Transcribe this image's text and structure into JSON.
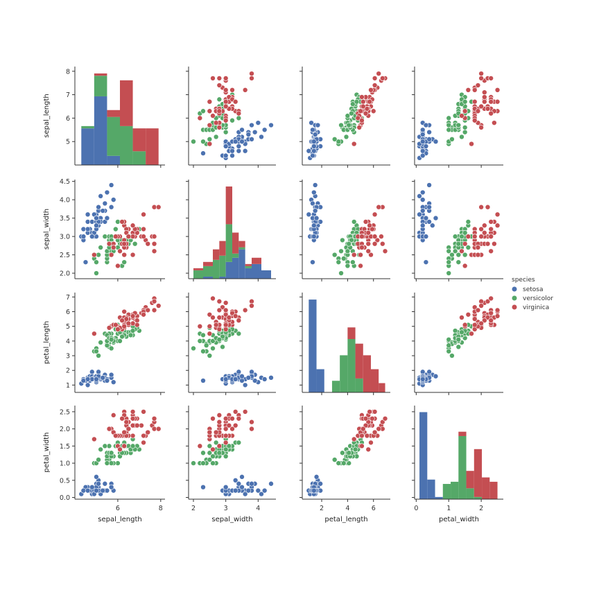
{
  "chart_data": {
    "type": "scatter",
    "variables": [
      "sepal_length",
      "sepal_width",
      "petal_length",
      "petal_width"
    ],
    "ranges": {
      "sepal_length": [
        4.0,
        8.2
      ],
      "sepal_width": [
        1.85,
        4.55
      ],
      "petal_length": [
        0.5,
        7.3
      ],
      "petal_width": [
        -0.05,
        2.68
      ]
    },
    "ticks": {
      "sepal_length": {
        "row": [
          5,
          6,
          7,
          8
        ],
        "col": [
          6,
          8
        ]
      },
      "sepal_width": {
        "row": [
          2.0,
          2.5,
          3.0,
          3.5,
          4.0,
          4.5
        ],
        "col": [
          2,
          3,
          4
        ]
      },
      "petal_length": {
        "row": [
          1,
          2,
          3,
          4,
          5,
          6,
          7
        ],
        "col": [
          2,
          4,
          6
        ]
      },
      "petal_width": {
        "row": [
          0.0,
          0.5,
          1.0,
          1.5,
          2.0,
          2.5
        ],
        "col": [
          0,
          1,
          2
        ]
      }
    },
    "tick_labels": {
      "sepal_length": {
        "row": [
          "5",
          "6",
          "7",
          "8"
        ],
        "col": [
          "6",
          "8"
        ]
      },
      "sepal_width": {
        "row": [
          "2.0",
          "2.5",
          "3.0",
          "3.5",
          "4.0",
          "4.5"
        ],
        "col": [
          "2",
          "3",
          "4"
        ]
      },
      "petal_length": {
        "row": [
          "1",
          "2",
          "3",
          "4",
          "5",
          "6",
          "7"
        ],
        "col": [
          "2",
          "4",
          "6"
        ]
      },
      "petal_width": {
        "row": [
          "0.0",
          "0.5",
          "1.0",
          "1.5",
          "2.0",
          "2.5"
        ],
        "col": [
          "0",
          "1",
          "2"
        ]
      }
    },
    "legend": {
      "title": "species",
      "placement": "right-center"
    },
    "series": [
      {
        "name": "setosa",
        "color": "#4c72b0",
        "points": [
          [
            5.1,
            3.5,
            1.4,
            0.2
          ],
          [
            4.9,
            3.0,
            1.4,
            0.2
          ],
          [
            4.7,
            3.2,
            1.3,
            0.2
          ],
          [
            4.6,
            3.1,
            1.5,
            0.2
          ],
          [
            5.0,
            3.6,
            1.4,
            0.2
          ],
          [
            5.4,
            3.9,
            1.7,
            0.4
          ],
          [
            4.6,
            3.4,
            1.4,
            0.3
          ],
          [
            5.0,
            3.4,
            1.5,
            0.2
          ],
          [
            4.4,
            2.9,
            1.4,
            0.2
          ],
          [
            4.9,
            3.1,
            1.5,
            0.1
          ],
          [
            5.4,
            3.7,
            1.5,
            0.2
          ],
          [
            4.8,
            3.4,
            1.6,
            0.2
          ],
          [
            4.8,
            3.0,
            1.4,
            0.1
          ],
          [
            4.3,
            3.0,
            1.1,
            0.1
          ],
          [
            5.8,
            4.0,
            1.2,
            0.2
          ],
          [
            5.7,
            4.4,
            1.5,
            0.4
          ],
          [
            5.4,
            3.9,
            1.3,
            0.4
          ],
          [
            5.1,
            3.5,
            1.4,
            0.3
          ],
          [
            5.7,
            3.8,
            1.7,
            0.3
          ],
          [
            5.1,
            3.8,
            1.5,
            0.3
          ],
          [
            5.4,
            3.4,
            1.7,
            0.2
          ],
          [
            5.1,
            3.7,
            1.5,
            0.4
          ],
          [
            4.6,
            3.6,
            1.0,
            0.2
          ],
          [
            5.1,
            3.3,
            1.7,
            0.5
          ],
          [
            4.8,
            3.4,
            1.9,
            0.2
          ],
          [
            5.0,
            3.0,
            1.6,
            0.2
          ],
          [
            5.0,
            3.4,
            1.6,
            0.4
          ],
          [
            5.2,
            3.5,
            1.5,
            0.2
          ],
          [
            5.2,
            3.4,
            1.4,
            0.2
          ],
          [
            4.7,
            3.2,
            1.6,
            0.2
          ],
          [
            4.8,
            3.1,
            1.6,
            0.2
          ],
          [
            5.4,
            3.4,
            1.5,
            0.4
          ],
          [
            5.2,
            4.1,
            1.5,
            0.1
          ],
          [
            5.5,
            4.2,
            1.4,
            0.2
          ],
          [
            4.9,
            3.1,
            1.5,
            0.2
          ],
          [
            5.0,
            3.2,
            1.2,
            0.2
          ],
          [
            5.5,
            3.5,
            1.3,
            0.2
          ],
          [
            4.9,
            3.6,
            1.4,
            0.1
          ],
          [
            4.4,
            3.0,
            1.3,
            0.2
          ],
          [
            5.1,
            3.4,
            1.5,
            0.2
          ],
          [
            5.0,
            3.5,
            1.3,
            0.3
          ],
          [
            4.5,
            2.3,
            1.3,
            0.3
          ],
          [
            4.4,
            3.2,
            1.3,
            0.2
          ],
          [
            5.0,
            3.5,
            1.6,
            0.6
          ],
          [
            5.1,
            3.8,
            1.9,
            0.4
          ],
          [
            4.8,
            3.0,
            1.4,
            0.3
          ],
          [
            5.1,
            3.8,
            1.6,
            0.2
          ],
          [
            4.6,
            3.2,
            1.4,
            0.2
          ],
          [
            5.3,
            3.7,
            1.5,
            0.2
          ],
          [
            5.0,
            3.3,
            1.4,
            0.2
          ]
        ]
      },
      {
        "name": "versicolor",
        "color": "#55a868",
        "points": [
          [
            7.0,
            3.2,
            4.7,
            1.4
          ],
          [
            6.4,
            3.2,
            4.5,
            1.5
          ],
          [
            6.9,
            3.1,
            4.9,
            1.5
          ],
          [
            5.5,
            2.3,
            4.0,
            1.3
          ],
          [
            6.5,
            2.8,
            4.6,
            1.5
          ],
          [
            5.7,
            2.8,
            4.5,
            1.3
          ],
          [
            6.3,
            3.3,
            4.7,
            1.6
          ],
          [
            4.9,
            2.4,
            3.3,
            1.0
          ],
          [
            6.6,
            2.9,
            4.6,
            1.3
          ],
          [
            5.2,
            2.7,
            3.9,
            1.4
          ],
          [
            5.0,
            2.0,
            3.5,
            1.0
          ],
          [
            5.9,
            3.0,
            4.2,
            1.5
          ],
          [
            6.0,
            2.2,
            4.0,
            1.0
          ],
          [
            6.1,
            2.9,
            4.7,
            1.4
          ],
          [
            5.6,
            2.9,
            3.6,
            1.3
          ],
          [
            6.7,
            3.1,
            4.4,
            1.4
          ],
          [
            5.6,
            3.0,
            4.5,
            1.5
          ],
          [
            5.8,
            2.7,
            4.1,
            1.0
          ],
          [
            6.2,
            2.2,
            4.5,
            1.5
          ],
          [
            5.6,
            2.5,
            3.9,
            1.1
          ],
          [
            5.9,
            3.2,
            4.8,
            1.8
          ],
          [
            6.1,
            2.8,
            4.0,
            1.3
          ],
          [
            6.3,
            2.5,
            4.9,
            1.5
          ],
          [
            6.1,
            2.8,
            4.7,
            1.2
          ],
          [
            6.4,
            2.9,
            4.3,
            1.3
          ],
          [
            6.6,
            3.0,
            4.4,
            1.4
          ],
          [
            6.8,
            2.8,
            4.8,
            1.4
          ],
          [
            6.7,
            3.0,
            5.0,
            1.7
          ],
          [
            6.0,
            2.9,
            4.5,
            1.5
          ],
          [
            5.7,
            2.6,
            3.5,
            1.0
          ],
          [
            5.5,
            2.4,
            3.8,
            1.1
          ],
          [
            5.5,
            2.4,
            3.7,
            1.0
          ],
          [
            5.8,
            2.7,
            3.9,
            1.2
          ],
          [
            6.0,
            2.7,
            5.1,
            1.6
          ],
          [
            5.4,
            3.0,
            4.5,
            1.5
          ],
          [
            6.0,
            3.4,
            4.5,
            1.6
          ],
          [
            6.7,
            3.1,
            4.7,
            1.5
          ],
          [
            6.3,
            2.3,
            4.4,
            1.3
          ],
          [
            5.6,
            3.0,
            4.1,
            1.3
          ],
          [
            5.5,
            2.5,
            4.0,
            1.3
          ],
          [
            5.5,
            2.6,
            4.4,
            1.2
          ],
          [
            6.1,
            3.0,
            4.6,
            1.4
          ],
          [
            5.8,
            2.6,
            4.0,
            1.2
          ],
          [
            5.0,
            2.3,
            3.3,
            1.0
          ],
          [
            5.6,
            2.7,
            4.2,
            1.3
          ],
          [
            5.7,
            3.0,
            4.2,
            1.2
          ],
          [
            5.7,
            2.9,
            4.2,
            1.3
          ],
          [
            6.2,
            2.9,
            4.3,
            1.3
          ],
          [
            5.1,
            2.5,
            3.0,
            1.1
          ],
          [
            5.7,
            2.8,
            4.1,
            1.3
          ]
        ]
      },
      {
        "name": "virginica",
        "color": "#c44e52",
        "points": [
          [
            6.3,
            3.3,
            6.0,
            2.5
          ],
          [
            5.8,
            2.7,
            5.1,
            1.9
          ],
          [
            7.1,
            3.0,
            5.9,
            2.1
          ],
          [
            6.3,
            2.9,
            5.6,
            1.8
          ],
          [
            6.5,
            3.0,
            5.8,
            2.2
          ],
          [
            7.6,
            3.0,
            6.6,
            2.1
          ],
          [
            4.9,
            2.5,
            4.5,
            1.7
          ],
          [
            7.3,
            2.9,
            6.3,
            1.8
          ],
          [
            6.7,
            2.5,
            5.8,
            1.8
          ],
          [
            7.2,
            3.6,
            6.1,
            2.5
          ],
          [
            6.5,
            3.2,
            5.1,
            2.0
          ],
          [
            6.4,
            2.7,
            5.3,
            1.9
          ],
          [
            6.8,
            3.0,
            5.5,
            2.1
          ],
          [
            5.7,
            2.5,
            5.0,
            2.0
          ],
          [
            5.8,
            2.8,
            5.1,
            2.4
          ],
          [
            6.4,
            3.2,
            5.3,
            2.3
          ],
          [
            6.5,
            3.0,
            5.5,
            1.8
          ],
          [
            7.7,
            3.8,
            6.7,
            2.2
          ],
          [
            7.7,
            2.6,
            6.9,
            2.3
          ],
          [
            6.0,
            2.2,
            5.0,
            1.5
          ],
          [
            6.9,
            3.2,
            5.7,
            2.3
          ],
          [
            5.6,
            2.8,
            4.9,
            2.0
          ],
          [
            7.7,
            2.8,
            6.7,
            2.0
          ],
          [
            6.3,
            2.7,
            4.9,
            1.8
          ],
          [
            6.7,
            3.3,
            5.7,
            2.1
          ],
          [
            7.2,
            3.2,
            6.0,
            1.8
          ],
          [
            6.2,
            2.8,
            4.8,
            1.8
          ],
          [
            6.1,
            3.0,
            4.9,
            1.8
          ],
          [
            6.4,
            2.8,
            5.6,
            2.1
          ],
          [
            7.2,
            3.0,
            5.8,
            1.6
          ],
          [
            7.4,
            2.8,
            6.1,
            1.9
          ],
          [
            7.9,
            3.8,
            6.4,
            2.0
          ],
          [
            6.4,
            2.8,
            5.6,
            2.2
          ],
          [
            6.3,
            2.8,
            5.1,
            1.5
          ],
          [
            6.1,
            2.6,
            5.6,
            1.4
          ],
          [
            7.7,
            3.0,
            6.1,
            2.3
          ],
          [
            6.3,
            3.4,
            5.6,
            2.4
          ],
          [
            6.4,
            3.1,
            5.5,
            1.8
          ],
          [
            6.0,
            3.0,
            4.8,
            1.8
          ],
          [
            6.9,
            3.1,
            5.4,
            2.1
          ],
          [
            6.7,
            3.1,
            5.6,
            2.4
          ],
          [
            6.9,
            3.1,
            5.1,
            2.3
          ],
          [
            5.8,
            2.7,
            5.1,
            1.9
          ],
          [
            6.8,
            3.2,
            5.9,
            2.3
          ],
          [
            6.7,
            3.3,
            5.7,
            2.5
          ],
          [
            6.7,
            3.0,
            5.2,
            2.3
          ],
          [
            6.3,
            2.5,
            5.0,
            1.9
          ],
          [
            6.5,
            3.0,
            5.2,
            2.0
          ],
          [
            6.2,
            3.4,
            5.4,
            2.3
          ],
          [
            5.9,
            3.0,
            5.1,
            1.8
          ]
        ]
      }
    ],
    "histograms": [
      {
        "variable": "sepal_length",
        "type": "bar",
        "stacked": true,
        "bins": [
          4.3,
          4.9,
          5.5,
          6.1,
          6.7,
          7.3,
          7.9
        ],
        "counts": {
          "setosa": [
            16,
            30,
            4,
            0,
            0,
            0
          ],
          "versicolor": [
            1,
            9,
            17,
            17,
            6,
            0
          ],
          "virginica": [
            0,
            1,
            3,
            20,
            10,
            16
          ]
        }
      },
      {
        "variable": "sepal_width",
        "type": "bar",
        "stacked": true,
        "bins": [
          2.0,
          2.3,
          2.6,
          2.8,
          3.0,
          3.2,
          3.4,
          3.6,
          3.8,
          4.1,
          4.4
        ],
        "counts": {
          "setosa": [
            0,
            1,
            0,
            1,
            8,
            10,
            14,
            5,
            7,
            4
          ],
          "versicolor": [
            4,
            5,
            9,
            10,
            18,
            2,
            1,
            1,
            0,
            0
          ],
          "virginica": [
            1,
            2,
            5,
            7,
            18,
            10,
            3,
            1,
            3,
            0
          ]
        }
      },
      {
        "variable": "petal_length",
        "type": "bar",
        "stacked": true,
        "bins": [
          1.0,
          1.6,
          2.2,
          2.8,
          3.4,
          4.0,
          4.6,
          5.2,
          5.8,
          6.4,
          6.9
        ],
        "counts": {
          "setosa": [
            40,
            10,
            0,
            0,
            0,
            0,
            0,
            0,
            0,
            0
          ],
          "versicolor": [
            0,
            0,
            0,
            5,
            16,
            23,
            6,
            0,
            0,
            0
          ],
          "virginica": [
            0,
            0,
            0,
            0,
            0,
            5,
            15,
            16,
            10,
            4
          ]
        }
      },
      {
        "variable": "petal_width",
        "type": "bar",
        "stacked": true,
        "bins": [
          0.1,
          0.34,
          0.58,
          0.82,
          1.06,
          1.3,
          1.54,
          1.78,
          2.02,
          2.26,
          2.5
        ],
        "counts": {
          "setosa": [
            40,
            9,
            1,
            0,
            0,
            0,
            0,
            0,
            0,
            0
          ],
          "versicolor": [
            0,
            0,
            0,
            7,
            8,
            29,
            5,
            1,
            0,
            0
          ],
          "virginica": [
            0,
            0,
            0,
            0,
            0,
            2,
            8,
            22,
            10,
            8
          ]
        }
      }
    ]
  }
}
